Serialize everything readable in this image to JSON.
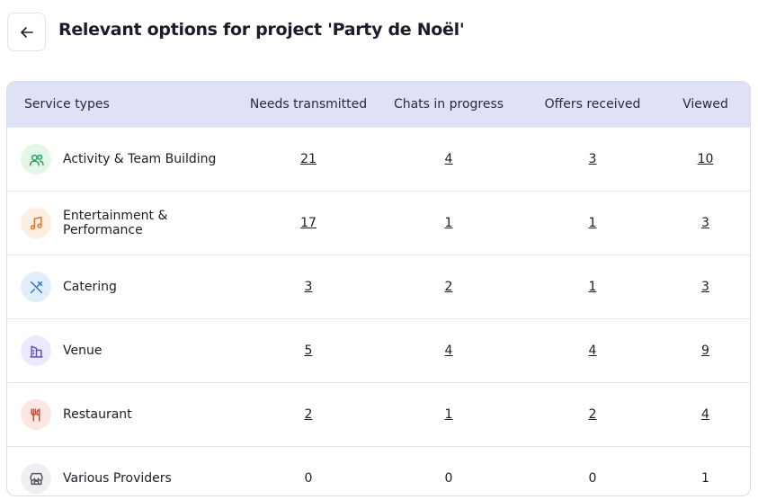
{
  "header": {
    "title": "Relevant options for project 'Party de Noël'"
  },
  "table": {
    "columns": [
      "Service types",
      "Needs transmitted",
      "Chats in progress",
      "Offers received",
      "Viewed"
    ],
    "rows": [
      [
        "Activity & Team Building",
        21,
        4,
        3,
        10
      ],
      [
        "Entertainment & Performance",
        17,
        1,
        1,
        3
      ],
      [
        "Catering",
        3,
        2,
        1,
        3
      ],
      [
        "Venue",
        5,
        4,
        4,
        9
      ],
      [
        "Restaurant",
        2,
        1,
        2,
        4
      ],
      [
        "Various Providers",
        0,
        0,
        0,
        1
      ]
    ]
  }
}
